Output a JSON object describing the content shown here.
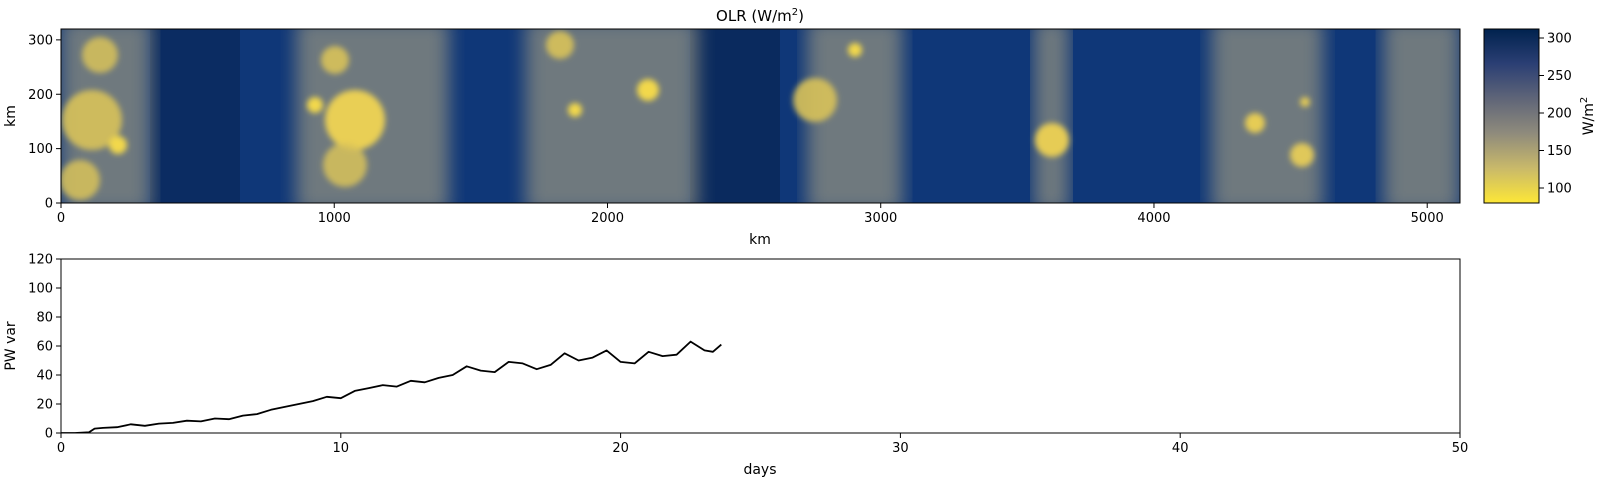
{
  "chart_data": [
    {
      "type": "heatmap",
      "title": "OLR (W/m",
      "title_sup": "2",
      "title_end": ")",
      "xlabel": "km",
      "ylabel": "km",
      "xlim": [
        0,
        5120
      ],
      "ylim": [
        0,
        320
      ],
      "xticks": [
        0,
        1000,
        2000,
        3000,
        4000,
        5000
      ],
      "yticks": [
        0,
        100,
        200,
        300
      ],
      "colormap": "cividis_r",
      "colorbar": {
        "label": "W/m",
        "label_sup": "2",
        "range": [
          80,
          312
        ],
        "ticks": [
          100,
          150,
          200,
          250,
          300
        ],
        "colors": [
          "#fde737",
          "#c9b96a",
          "#8f8b7c",
          "#5f6578",
          "#2b3f74",
          "#00224e"
        ]
      },
      "convective_bands_km": [
        {
          "from": 0,
          "to": 330
        },
        {
          "from": 860,
          "to": 1420
        },
        {
          "from": 1700,
          "to": 2330
        },
        {
          "from": 2730,
          "to": 3080
        },
        {
          "from": 3560,
          "to": 3690
        },
        {
          "from": 4210,
          "to": 4620
        },
        {
          "from": 4840,
          "to": 5120
        }
      ]
    },
    {
      "type": "line",
      "xlabel": "days",
      "ylabel": "PW var",
      "xlim": [
        0,
        50
      ],
      "ylim": [
        0,
        120
      ],
      "xticks": [
        0,
        10,
        20,
        30,
        40,
        50
      ],
      "yticks": [
        0,
        20,
        40,
        60,
        80,
        100,
        120
      ],
      "color": "#000000",
      "series": [
        {
          "x": [
            0,
            0.5,
            1.0,
            1.2,
            1.5,
            2.0,
            2.5,
            3.0,
            3.5,
            4.0,
            4.5,
            5.0,
            5.5,
            6.0,
            6.5,
            7.0,
            7.5,
            8.0,
            8.5,
            9.0,
            9.5,
            10.0,
            10.5,
            11.0,
            11.5,
            12.0,
            12.5,
            13.0,
            13.5,
            14.0,
            14.5,
            15.0,
            15.5,
            16.0,
            16.5,
            17.0,
            17.5,
            18.0,
            18.5,
            19.0,
            19.5,
            20.0,
            20.5,
            21.0,
            21.5,
            22.0,
            22.5,
            23.0,
            23.3,
            23.6
          ],
          "y": [
            0,
            0,
            0.5,
            3,
            3.5,
            4,
            6,
            5,
            6.5,
            7,
            8.5,
            8,
            10,
            9.5,
            12,
            13,
            16,
            18,
            20,
            22,
            25,
            24,
            29,
            31,
            33,
            32,
            36,
            35,
            38,
            40,
            46,
            43,
            42,
            49,
            48,
            44,
            47,
            55,
            50,
            52,
            57,
            49,
            48,
            56,
            53,
            54,
            63,
            57,
            56,
            61
          ]
        }
      ]
    }
  ]
}
